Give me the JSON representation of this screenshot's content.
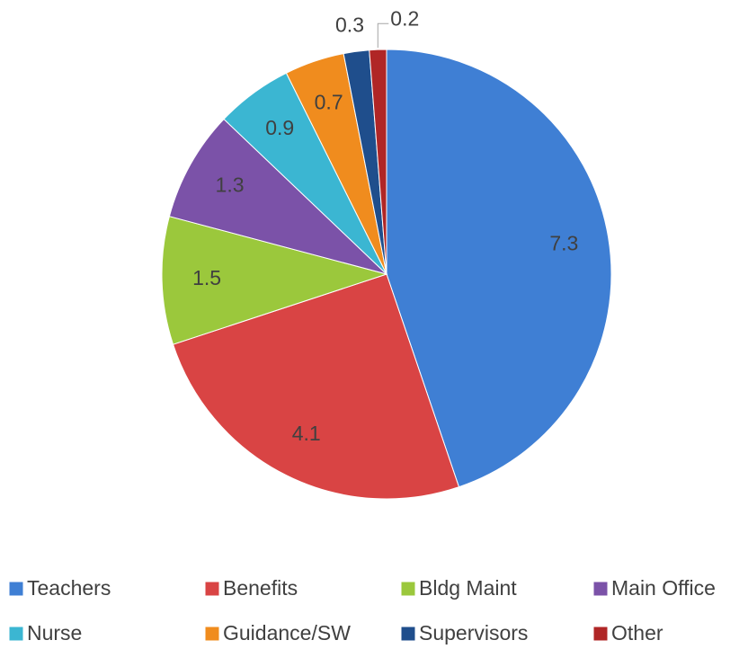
{
  "chart_data": {
    "type": "pie",
    "categories": [
      "Teachers",
      "Benefits",
      "Bldg Maint",
      "Main Office",
      "Nurse",
      "Guidance/SW",
      "Supervisors",
      "Other"
    ],
    "values": [
      7.3,
      4.1,
      1.5,
      1.3,
      0.9,
      0.7,
      0.3,
      0.2
    ],
    "colors": [
      "#3f7fd4",
      "#d94444",
      "#9bc83c",
      "#7b52a8",
      "#3bb6d2",
      "#f08c1e",
      "#1f4e8c",
      "#b02626"
    ],
    "legend": "bottom"
  }
}
